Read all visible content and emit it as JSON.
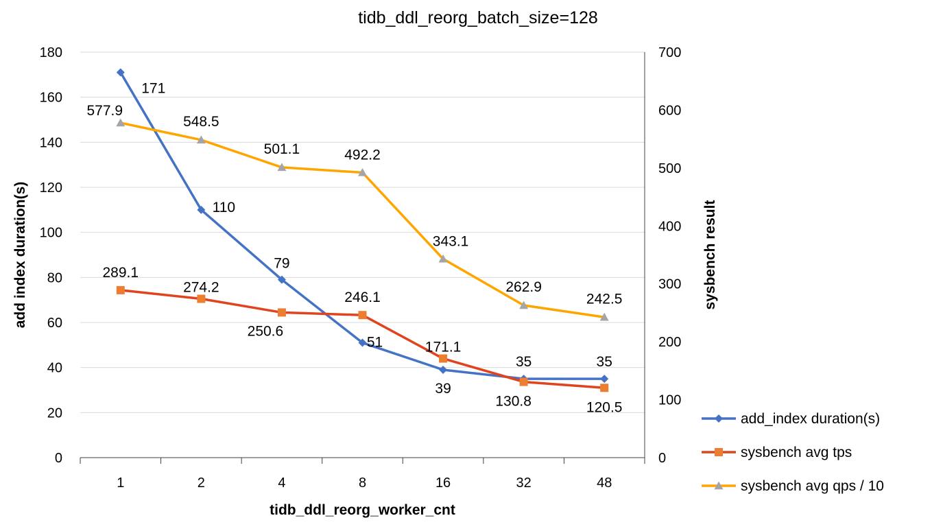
{
  "chart_data": {
    "type": "line",
    "title": "tidb_ddl_reorg_batch_size=128",
    "xlabel": "tidb_ddl_reorg_worker_cnt",
    "ylabel": "add index duration(s)",
    "y2label": "sysbench result",
    "categories": [
      "1",
      "2",
      "4",
      "8",
      "16",
      "32",
      "48"
    ],
    "ylim": [
      0,
      180
    ],
    "yticks": [
      0,
      20,
      40,
      60,
      80,
      100,
      120,
      140,
      160,
      180
    ],
    "y2lim": [
      0,
      700
    ],
    "y2ticks": [
      0,
      100,
      200,
      300,
      400,
      500,
      600,
      700
    ],
    "grid": true,
    "legend_position": "bottom-right",
    "series": [
      {
        "name": "add_index duration(s)",
        "axis": "left",
        "color": "#4472c4",
        "marker": "diamond",
        "values": [
          171,
          110,
          79,
          51,
          39,
          35,
          35
        ],
        "labels": [
          "171",
          "110",
          "79",
          "51",
          "39",
          "35",
          "35"
        ]
      },
      {
        "name": "sysbench avg tps",
        "axis": "right",
        "color": "#e0441f",
        "marker_color": "#ed7d31",
        "marker": "square",
        "values": [
          289.1,
          274.2,
          250.6,
          246.1,
          171.1,
          130.8,
          120.5
        ],
        "labels": [
          "289.1",
          "274.2",
          "250.6",
          "246.1",
          "171.1",
          "130.8",
          "120.5"
        ]
      },
      {
        "name": "sysbench avg qps / 10",
        "axis": "right",
        "color": "#ffa500",
        "marker_color": "#a5a5a5",
        "marker": "triangle",
        "values": [
          577.9,
          548.5,
          501.1,
          492.2,
          343.1,
          262.9,
          242.5
        ],
        "labels": [
          "577.9",
          "548.5",
          "501.1",
          "492.2",
          "343.1",
          "262.9",
          "242.5"
        ]
      }
    ]
  }
}
